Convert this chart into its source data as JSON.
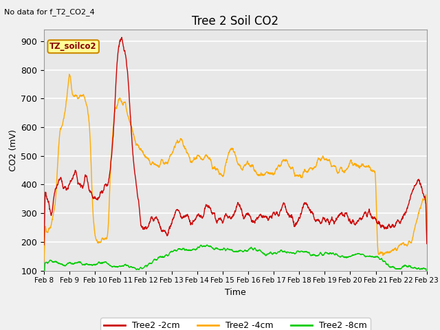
{
  "title": "Tree 2 Soil CO2",
  "subtitle": "No data for f_T2_CO2_4",
  "ylabel": "CO2 (mV)",
  "xlabel": "Time",
  "annotation": "TZ_soilco2",
  "ylim": [
    100,
    940
  ],
  "yticks": [
    100,
    200,
    300,
    400,
    500,
    600,
    700,
    800,
    900
  ],
  "xtick_labels": [
    "Feb 8",
    "Feb 9",
    "Feb 10",
    "Feb 11",
    "Feb 12",
    "Feb 13",
    "Feb 14",
    "Feb 15",
    "Feb 16",
    "Feb 17",
    "Feb 18",
    "Feb 19",
    "Feb 20",
    "Feb 21",
    "Feb 22",
    "Feb 23"
  ],
  "line_colors": {
    "2cm": "#cc0000",
    "4cm": "#ffaa00",
    "8cm": "#00cc00"
  },
  "legend_labels": [
    "Tree2 -2cm",
    "Tree2 -4cm",
    "Tree2 -8cm"
  ],
  "plot_bg_color": "#e8e8e8",
  "fig_bg_color": "#f0f0f0",
  "grid_color": "#ffffff",
  "annotation_bg": "#ffff99",
  "annotation_border": "#cc8800",
  "annotation_text_color": "#880000"
}
